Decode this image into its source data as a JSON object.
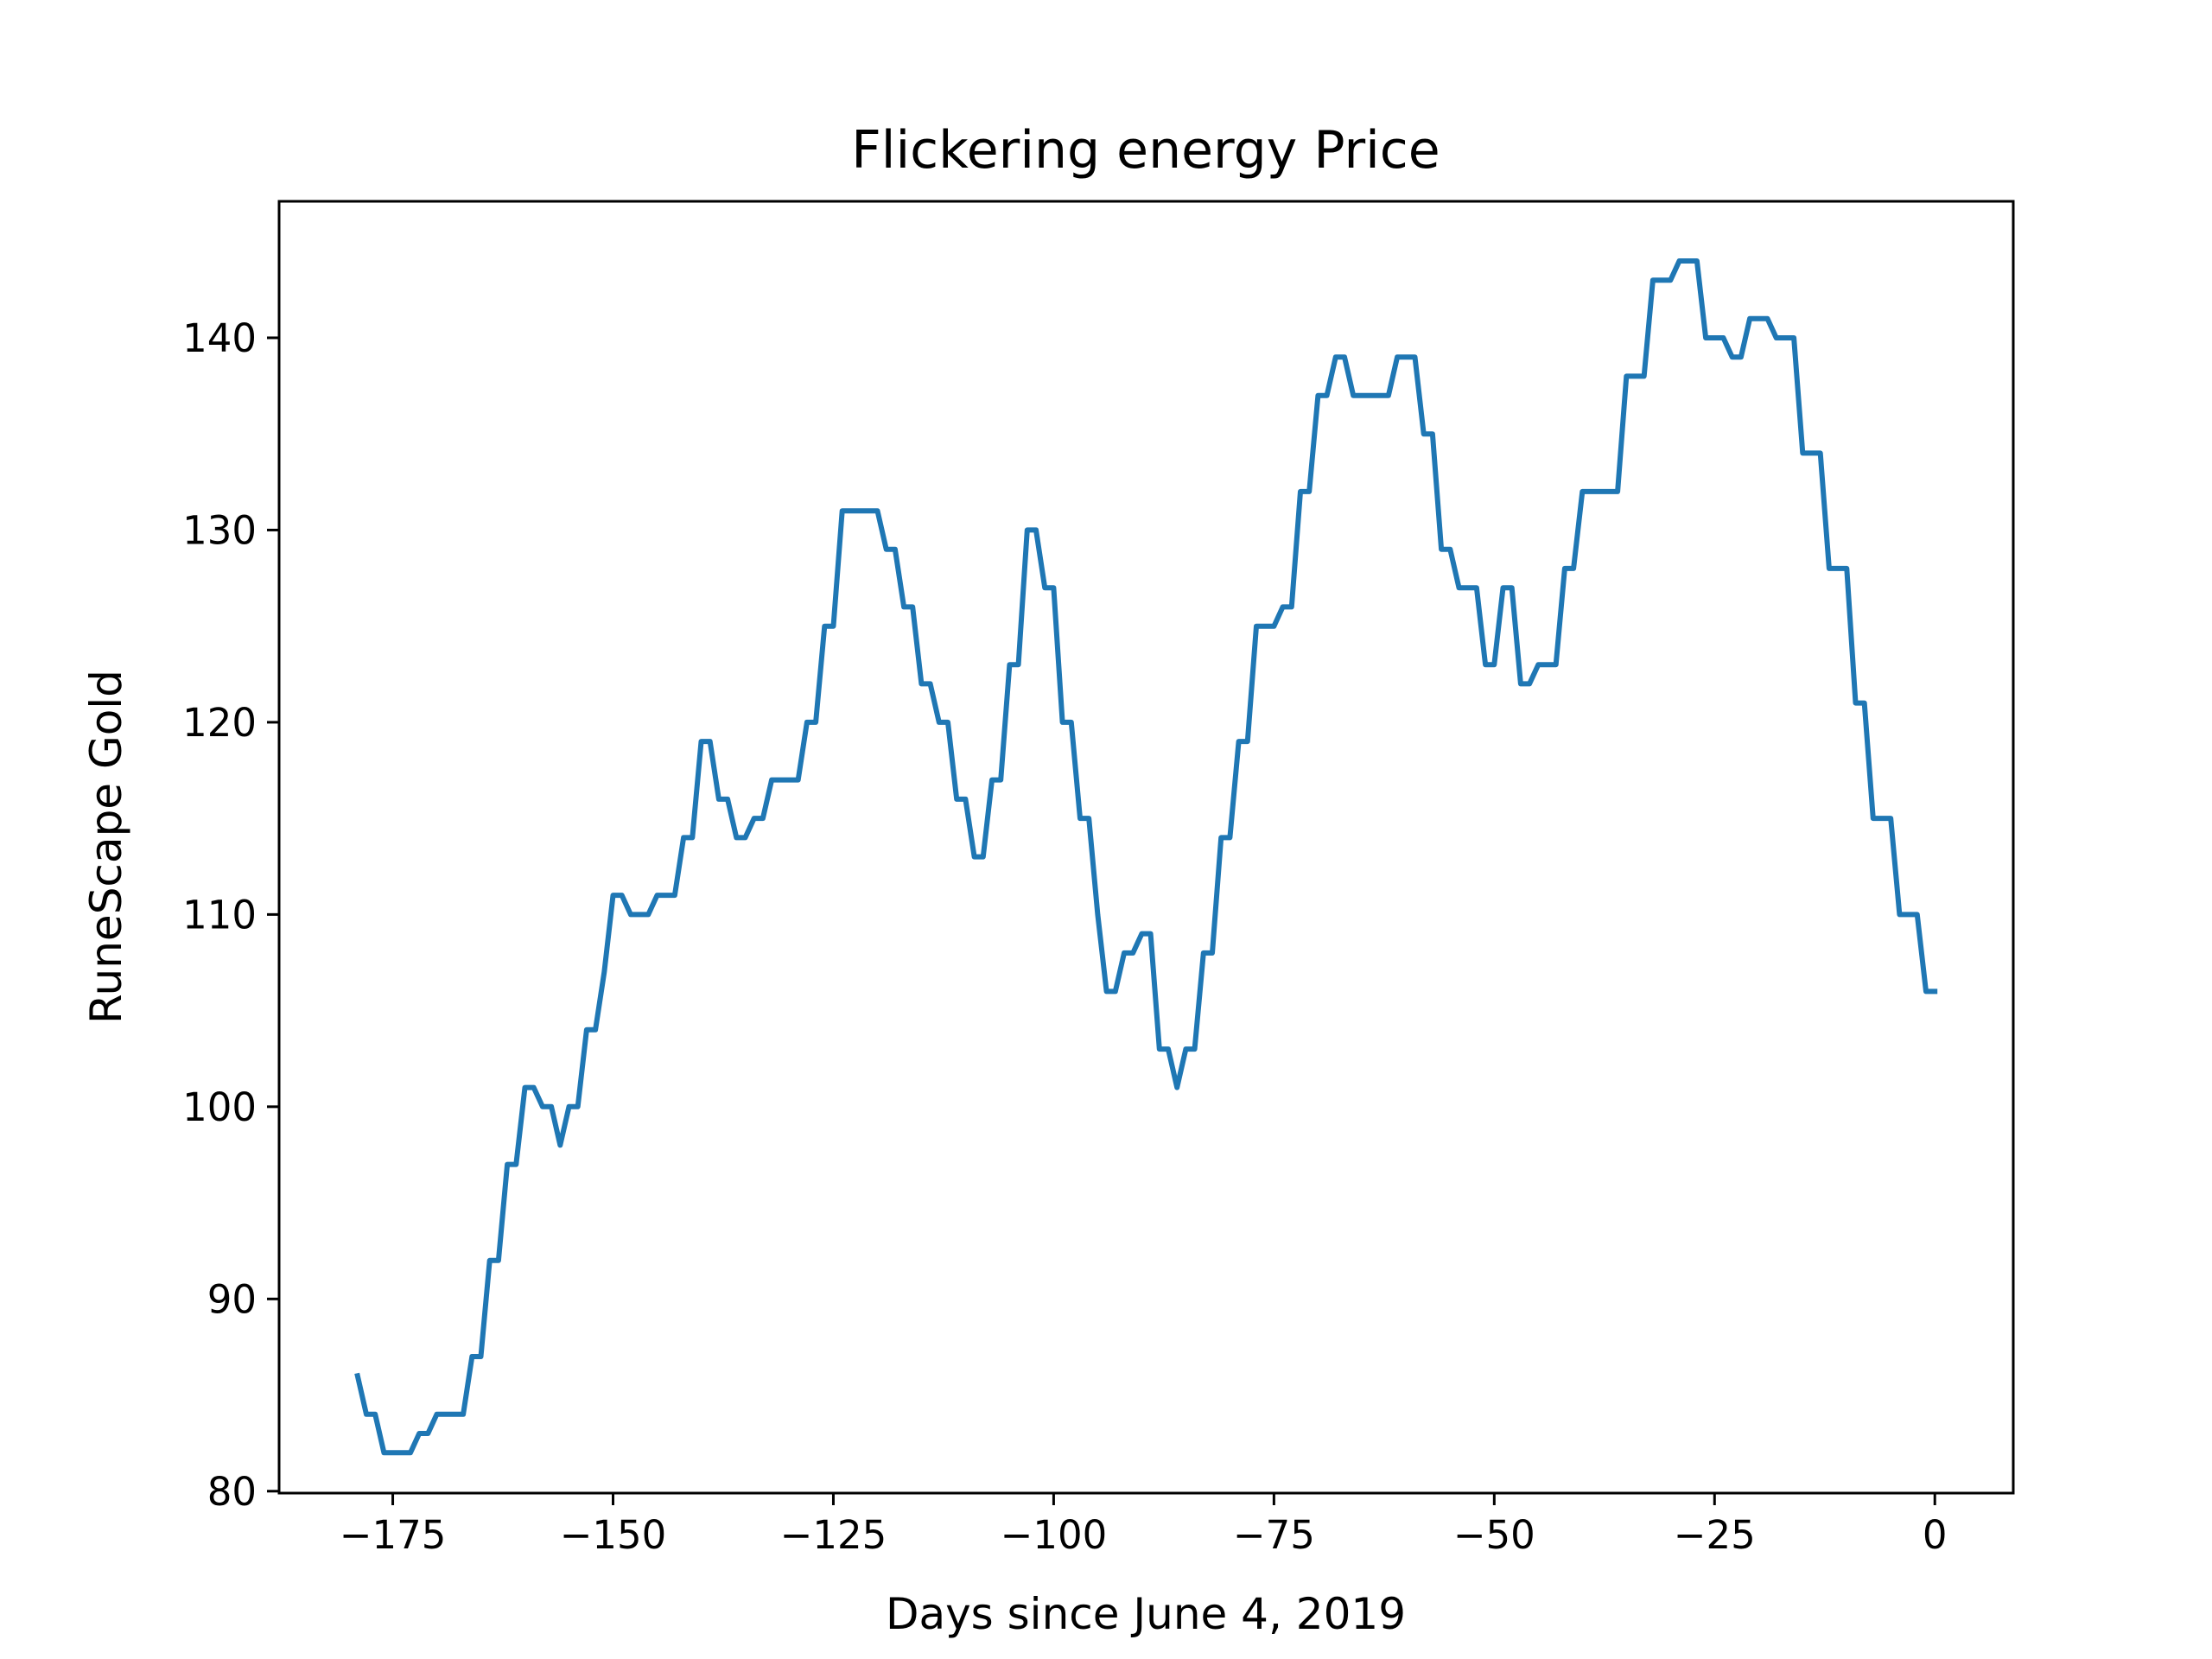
{
  "chart_data": {
    "type": "line",
    "title": "Flickering energy Price",
    "xlabel": "Days since June 4, 2019",
    "ylabel": "RuneScape Gold",
    "xlim": [
      -187.9,
      8.9
    ],
    "ylim": [
      79.9,
      147.1
    ],
    "xticks": [
      -175,
      -150,
      -125,
      -100,
      -75,
      -50,
      -25,
      0
    ],
    "xtick_labels": [
      "−175",
      "−150",
      "−125",
      "−100",
      "−75",
      "−50",
      "−25",
      "0"
    ],
    "yticks": [
      80,
      90,
      100,
      110,
      120,
      130,
      140
    ],
    "ytick_labels": [
      "80",
      "90",
      "100",
      "110",
      "120",
      "130",
      "140"
    ],
    "grid": false,
    "legend": "none",
    "series": [
      {
        "color": "#1f77b4",
        "x": [
          -179,
          -178,
          -177,
          -176,
          -175,
          -174,
          -173,
          -172,
          -171,
          -170,
          -169,
          -168,
          -167,
          -166,
          -165,
          -164,
          -163,
          -162,
          -161,
          -160,
          -159,
          -158,
          -157,
          -156,
          -155,
          -154,
          -153,
          -152,
          -151,
          -150,
          -149,
          -148,
          -147,
          -146,
          -145,
          -144,
          -143,
          -142,
          -141,
          -140,
          -139,
          -138,
          -137,
          -136,
          -135,
          -134,
          -133,
          -132,
          -131,
          -130,
          -129,
          -128,
          -127,
          -126,
          -125,
          -124,
          -123,
          -122,
          -121,
          -120,
          -119,
          -118,
          -117,
          -116,
          -115,
          -114,
          -113,
          -112,
          -111,
          -110,
          -109,
          -108,
          -107,
          -106,
          -105,
          -104,
          -103,
          -102,
          -101,
          -100,
          -99,
          -98,
          -97,
          -96,
          -95,
          -94,
          -93,
          -92,
          -91,
          -90,
          -89,
          -88,
          -87,
          -86,
          -85,
          -84,
          -83,
          -82,
          -81,
          -80,
          -79,
          -78,
          -77,
          -76,
          -75,
          -74,
          -73,
          -72,
          -71,
          -70,
          -69,
          -68,
          -67,
          -66,
          -65,
          -64,
          -63,
          -62,
          -61,
          -60,
          -59,
          -58,
          -57,
          -56,
          -55,
          -54,
          -53,
          -52,
          -51,
          -50,
          -49,
          -48,
          -47,
          -46,
          -45,
          -44,
          -43,
          -42,
          -41,
          -40,
          -39,
          -38,
          -37,
          -36,
          -35,
          -34,
          -33,
          -32,
          -31,
          -30,
          -29,
          -28,
          -27,
          -26,
          -25,
          -24,
          -23,
          -22,
          -21,
          -20,
          -19,
          -18,
          -17,
          -16,
          -15,
          -14,
          -13,
          -12,
          -11,
          -10,
          -9,
          -8,
          -7,
          -6,
          -5,
          -4,
          -3,
          -2,
          -1,
          0
        ],
        "y": [
          86,
          84,
          84,
          82,
          82,
          82,
          82,
          83,
          83,
          84,
          84,
          84,
          84,
          87,
          87,
          92,
          92,
          97,
          97,
          101,
          101,
          100,
          100,
          98,
          100,
          100,
          104,
          104,
          107,
          111,
          111,
          110,
          110,
          110,
          111,
          111,
          111,
          114,
          114,
          119,
          119,
          116,
          116,
          114,
          114,
          115,
          115,
          117,
          117,
          117,
          117,
          120,
          120,
          125,
          125,
          131,
          131,
          131,
          131,
          131,
          129,
          129,
          126,
          126,
          122,
          122,
          120,
          120,
          116,
          116,
          113,
          113,
          117,
          117,
          123,
          123,
          130,
          130,
          127,
          127,
          120,
          120,
          115,
          115,
          110,
          106,
          106,
          108,
          108,
          109,
          109,
          103,
          103,
          101,
          103,
          103,
          108,
          108,
          114,
          114,
          119,
          119,
          125,
          125,
          125,
          126,
          126,
          132,
          132,
          137,
          137,
          139,
          139,
          137,
          137,
          137,
          137,
          137,
          139,
          139,
          139,
          135,
          135,
          129,
          129,
          127,
          127,
          127,
          123,
          123,
          127,
          127,
          122,
          122,
          123,
          123,
          123,
          128,
          128,
          132,
          132,
          132,
          132,
          132,
          138,
          138,
          138,
          143,
          143,
          143,
          144,
          144,
          144,
          140,
          140,
          140,
          139,
          139,
          141,
          141,
          141,
          140,
          140,
          140,
          134,
          134,
          134,
          128,
          128,
          128,
          121,
          121,
          115,
          115,
          115,
          110,
          110,
          110,
          106,
          106
        ]
      }
    ]
  }
}
